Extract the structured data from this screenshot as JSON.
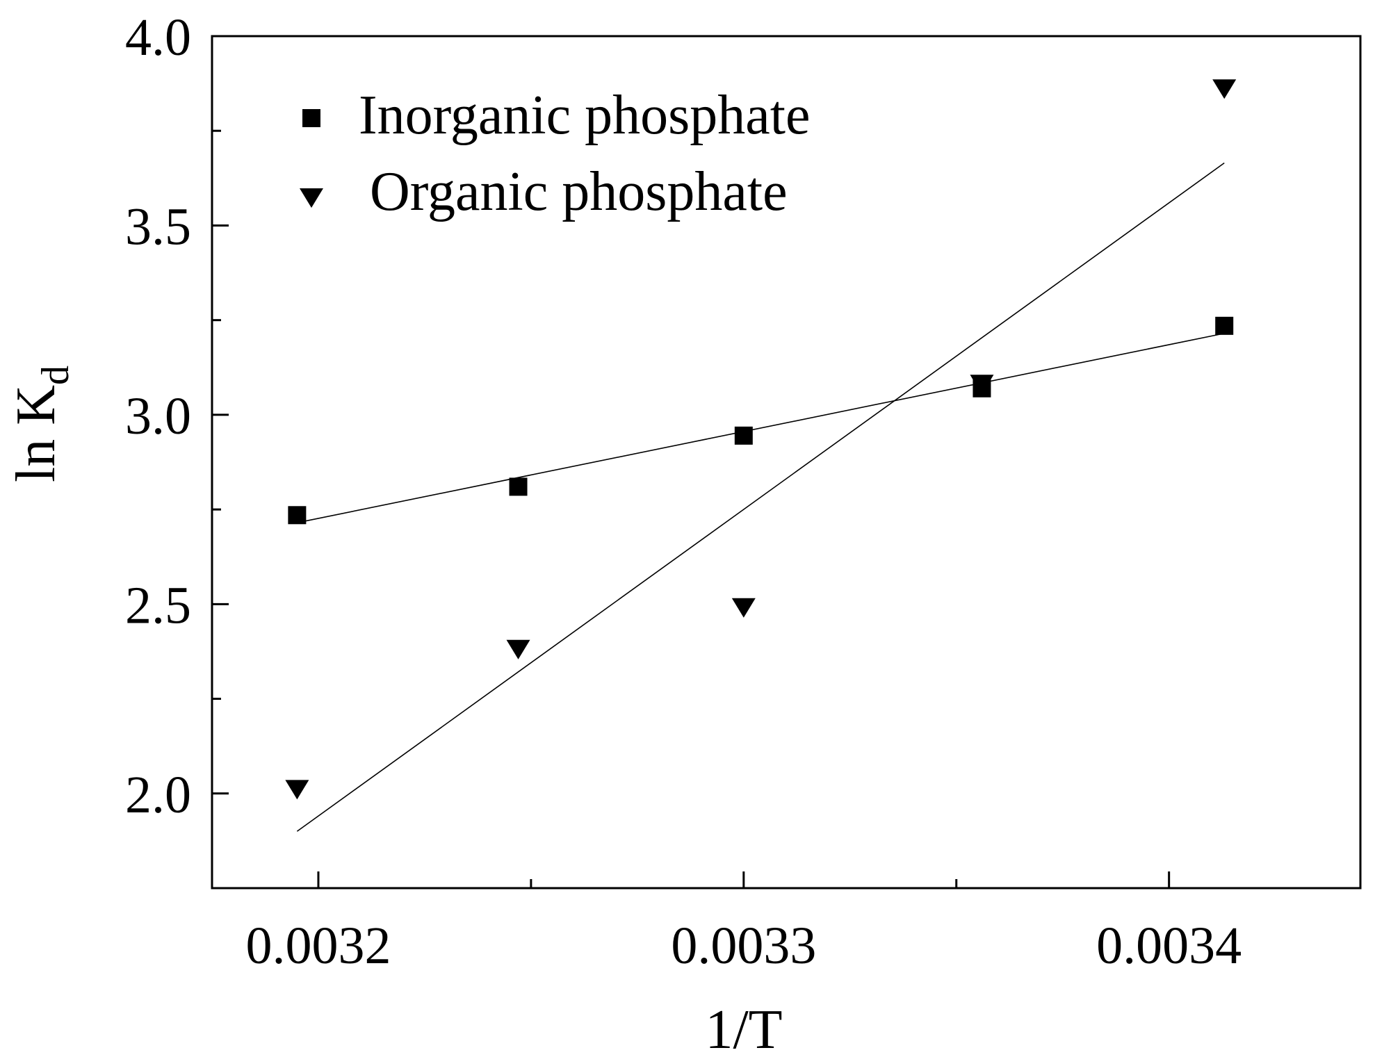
{
  "chart_data": {
    "type": "scatter",
    "xlabel": "1/T",
    "ylabel_main": "ln K",
    "ylabel_sub": "d",
    "xlim": [
      0.003175,
      0.003445
    ],
    "ylim": [
      1.75,
      4.0
    ],
    "x_ticks": [
      {
        "value": 0.0032,
        "label": "0.0032"
      },
      {
        "value": 0.0033,
        "label": "0.0033"
      },
      {
        "value": 0.0034,
        "label": "0.0034"
      }
    ],
    "x_minor_ticks": [
      0.00325,
      0.00335
    ],
    "y_ticks": [
      {
        "value": 2.0,
        "label": "2.0"
      },
      {
        "value": 2.5,
        "label": "2.5"
      },
      {
        "value": 3.0,
        "label": "3.0"
      },
      {
        "value": 3.5,
        "label": "3.5"
      },
      {
        "value": 4.0,
        "label": "4.0"
      }
    ],
    "y_minor_ticks": [
      2.25,
      2.75,
      3.25,
      3.75
    ],
    "grid": false,
    "legend_position": "top-left",
    "series": [
      {
        "name": "Inorganic phosphate",
        "marker": "square",
        "color": "#000000",
        "x": [
          0.003195,
          0.003247,
          0.0033,
          0.003356,
          0.003413
        ],
        "y": [
          2.735,
          2.81,
          2.945,
          3.07,
          3.235
        ],
        "fit": {
          "x": [
            0.003195,
            0.003413
          ],
          "y": [
            2.715,
            3.215
          ]
        }
      },
      {
        "name": "Organic phosphate",
        "marker": "triangle-down",
        "color": "#000000",
        "x": [
          0.003195,
          0.003247,
          0.0033,
          0.003356,
          0.003413
        ],
        "y": [
          2.01,
          2.38,
          2.49,
          3.08,
          3.86
        ],
        "fit": {
          "x": [
            0.003195,
            0.003413
          ],
          "y": [
            1.9,
            3.665
          ]
        }
      }
    ]
  }
}
